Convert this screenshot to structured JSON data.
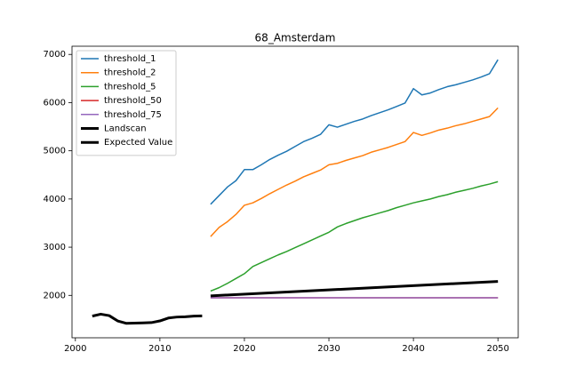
{
  "chart_data": {
    "type": "line",
    "title": "68_Amsterdam",
    "xlim": [
      1999.6,
      2052.4
    ],
    "xticks": [
      2000,
      2010,
      2020,
      2030,
      2040,
      2050
    ],
    "ylim": [
      1120,
      7170
    ],
    "yticks": [
      2000,
      3000,
      4000,
      5000,
      6000,
      7000
    ],
    "legend": "upper left",
    "series": [
      {
        "name": "threshold_1",
        "color": "#1f77b4",
        "width": 1.5,
        "x": [
          2016,
          2017,
          2018,
          2019,
          2020,
          2021,
          2022,
          2023,
          2024,
          2025,
          2026,
          2027,
          2028,
          2029,
          2030,
          2031,
          2032,
          2033,
          2034,
          2035,
          2036,
          2037,
          2038,
          2039,
          2040,
          2041,
          2042,
          2043,
          2044,
          2045,
          2046,
          2047,
          2048,
          2049,
          2050
        ],
        "values": [
          3890,
          4070,
          4250,
          4380,
          4610,
          4610,
          4710,
          4820,
          4910,
          4990,
          5090,
          5190,
          5260,
          5340,
          5540,
          5490,
          5550,
          5610,
          5660,
          5730,
          5790,
          5850,
          5920,
          5990,
          6290,
          6160,
          6200,
          6270,
          6330,
          6370,
          6420,
          6470,
          6530,
          6600,
          6890
        ]
      },
      {
        "name": "threshold_2",
        "color": "#ff7f0e",
        "width": 1.5,
        "x": [
          2016,
          2017,
          2018,
          2019,
          2020,
          2021,
          2022,
          2023,
          2024,
          2025,
          2026,
          2027,
          2028,
          2029,
          2030,
          2031,
          2032,
          2033,
          2034,
          2035,
          2036,
          2037,
          2038,
          2039,
          2040,
          2041,
          2042,
          2043,
          2044,
          2045,
          2046,
          2047,
          2048,
          2049,
          2050
        ],
        "values": [
          3220,
          3410,
          3530,
          3680,
          3870,
          3920,
          4010,
          4110,
          4200,
          4290,
          4370,
          4460,
          4530,
          4600,
          4710,
          4740,
          4800,
          4850,
          4900,
          4970,
          5020,
          5070,
          5130,
          5190,
          5380,
          5320,
          5370,
          5430,
          5470,
          5520,
          5560,
          5610,
          5660,
          5710,
          5890
        ]
      },
      {
        "name": "threshold_5",
        "color": "#2ca02c",
        "width": 1.5,
        "x": [
          2016,
          2017,
          2018,
          2019,
          2020,
          2021,
          2022,
          2023,
          2024,
          2025,
          2026,
          2027,
          2028,
          2029,
          2030,
          2031,
          2032,
          2033,
          2034,
          2035,
          2036,
          2037,
          2038,
          2039,
          2040,
          2041,
          2042,
          2043,
          2044,
          2045,
          2046,
          2047,
          2048,
          2049,
          2050
        ],
        "values": [
          2090,
          2160,
          2250,
          2350,
          2450,
          2600,
          2680,
          2760,
          2840,
          2910,
          2990,
          3070,
          3150,
          3230,
          3310,
          3420,
          3490,
          3550,
          3610,
          3660,
          3710,
          3760,
          3820,
          3870,
          3920,
          3960,
          4000,
          4050,
          4090,
          4140,
          4180,
          4220,
          4270,
          4310,
          4360
        ]
      },
      {
        "name": "threshold_50",
        "color": "#d62728",
        "width": 1.5,
        "x": [
          2016,
          2050
        ],
        "values": [
          1950,
          1950
        ]
      },
      {
        "name": "threshold_75",
        "color": "#9467bd",
        "width": 1.5,
        "x": [
          2016,
          2050
        ],
        "values": [
          1950,
          1950
        ]
      },
      {
        "name": "Landscan",
        "color": "#000000",
        "width": 3,
        "x": [
          2002,
          2003,
          2004,
          2005,
          2006,
          2007,
          2008,
          2009,
          2010,
          2011,
          2012,
          2013,
          2014,
          2015
        ],
        "values": [
          1570,
          1610,
          1580,
          1470,
          1420,
          1425,
          1430,
          1435,
          1470,
          1530,
          1550,
          1555,
          1570,
          1575
        ]
      },
      {
        "name": "Expected Value",
        "color": "#000000",
        "width": 3,
        "x": [
          2016,
          2050
        ],
        "values": [
          1990,
          2290
        ]
      }
    ]
  }
}
